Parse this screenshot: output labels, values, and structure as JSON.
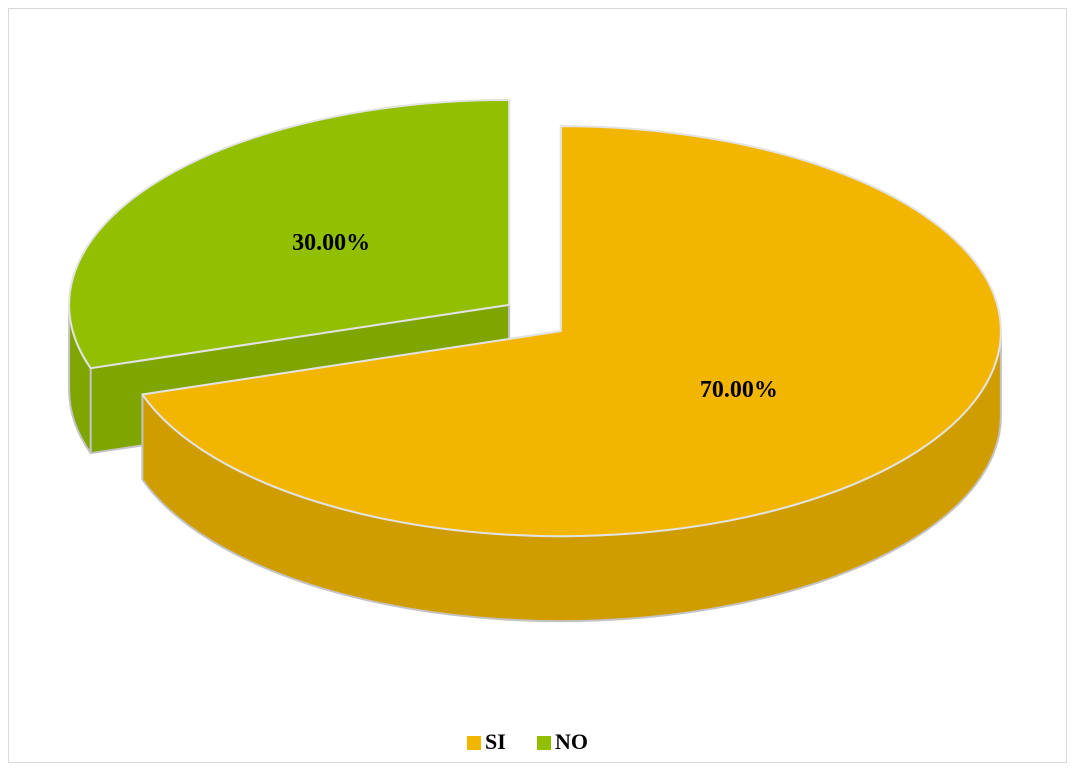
{
  "chart_data": {
    "type": "pie",
    "categories": [
      "SI",
      "NO"
    ],
    "values": [
      70,
      30
    ],
    "value_labels": [
      "70.00%",
      "30.00%"
    ],
    "colors": [
      "#f2b600",
      "#92c000"
    ],
    "legend": "bottom"
  }
}
